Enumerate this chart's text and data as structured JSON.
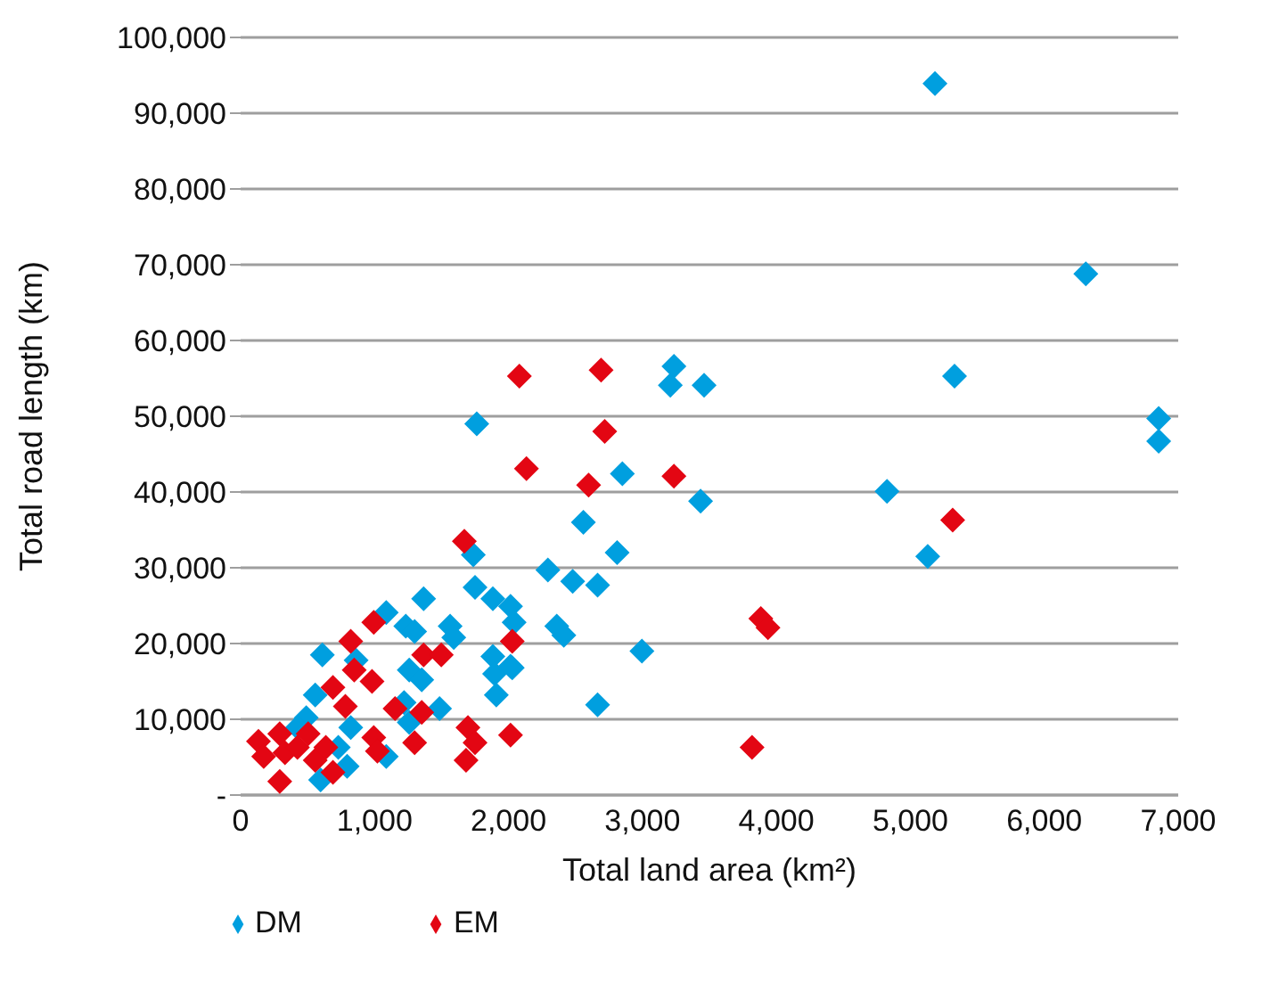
{
  "chart_data": {
    "type": "scatter",
    "xlabel": "Total land area (km²)",
    "ylabel": "Total road length (km)",
    "xlim": [
      0,
      7000
    ],
    "xticks": [
      0,
      {
        "value": 1000,
        "label": "1,000"
      },
      {
        "value": 2000,
        "label": "2,000"
      },
      {
        "value": 3000,
        "label": "3,000"
      },
      {
        "value": 4000,
        "label": "4,000"
      },
      {
        "value": 5000,
        "label": "5,000"
      },
      {
        "value": 6000,
        "label": "6,000"
      },
      {
        "value": 7000,
        "label": "7,000"
      }
    ],
    "ylim": [
      0,
      100000
    ],
    "yticks": [
      {
        "value": 0,
        "label": "-"
      },
      {
        "value": 10000,
        "label": "10,000"
      },
      {
        "value": 20000,
        "label": "20,000"
      },
      {
        "value": 30000,
        "label": "30,000"
      },
      {
        "value": 40000,
        "label": "40,000"
      },
      {
        "value": 50000,
        "label": "50,000"
      },
      {
        "value": 60000,
        "label": "60,000"
      },
      {
        "value": 70000,
        "label": "70,000"
      },
      {
        "value": 80000,
        "label": "80,000"
      },
      {
        "value": 90000,
        "label": "90,000"
      },
      {
        "value": 100000,
        "label": "100,000"
      }
    ],
    "grid": "y",
    "legend": "bottom left",
    "marker": "diamond",
    "series": [
      {
        "name": "DM",
        "color": "#009fdf",
        "x": [
          5184,
          6310,
          5330,
          6854,
          6854,
          4826,
          5130,
          3235,
          3208,
          3460,
          2850,
          3434,
          2559,
          2811,
          2294,
          2479,
          2665,
          2015,
          2042,
          2360,
          2413,
          2996,
          2028,
          2665,
          1763,
          1737,
          1750,
          1883,
          1366,
          1087,
          1233,
          1299,
          1564,
          1591,
          610,
          862,
          1259,
          1352,
          1883,
          1896,
          2015,
          1909,
          557,
          1220,
          1259,
          1485,
          1087,
          795,
          597,
          490,
          424,
          822,
          729
        ],
        "values": [
          93900,
          68800,
          55300,
          49700,
          46700,
          40100,
          31500,
          56600,
          54100,
          54100,
          42400,
          38800,
          36000,
          32000,
          29700,
          28200,
          27700,
          24900,
          22800,
          22300,
          21100,
          19000,
          16800,
          11900,
          49000,
          31700,
          27400,
          25900,
          25900,
          24100,
          22300,
          21600,
          22300,
          20800,
          18500,
          17800,
          16500,
          15200,
          18300,
          16000,
          17000,
          13200,
          13200,
          12200,
          9600,
          11400,
          5100,
          3800,
          2000,
          10200,
          8900,
          8900,
          6300
        ]
      },
      {
        "name": "EM",
        "color": "#e30613",
        "x": [
          5316,
          2081,
          2691,
          2718,
          2134,
          2598,
          3235,
          2028,
          3884,
          3937,
          2015,
          3818,
          1670,
          994,
          822,
          1366,
          1498,
          848,
          981,
          689,
          782,
          1153,
          1352,
          1697,
          1750,
          1683,
          994,
          1021,
          1299,
          133,
          172,
          292,
          331,
          292,
          424,
          504,
          557,
          636,
          689
        ],
        "values": [
          36300,
          55300,
          56100,
          48000,
          43100,
          40900,
          42100,
          20300,
          23300,
          22100,
          7900,
          6300,
          33500,
          22800,
          20300,
          18500,
          18500,
          16500,
          15000,
          14200,
          11700,
          11400,
          10900,
          8900,
          6900,
          4600,
          7600,
          5800,
          6900,
          7100,
          5100,
          8100,
          5600,
          1800,
          6300,
          8100,
          4600,
          6300,
          3000
        ]
      }
    ]
  }
}
